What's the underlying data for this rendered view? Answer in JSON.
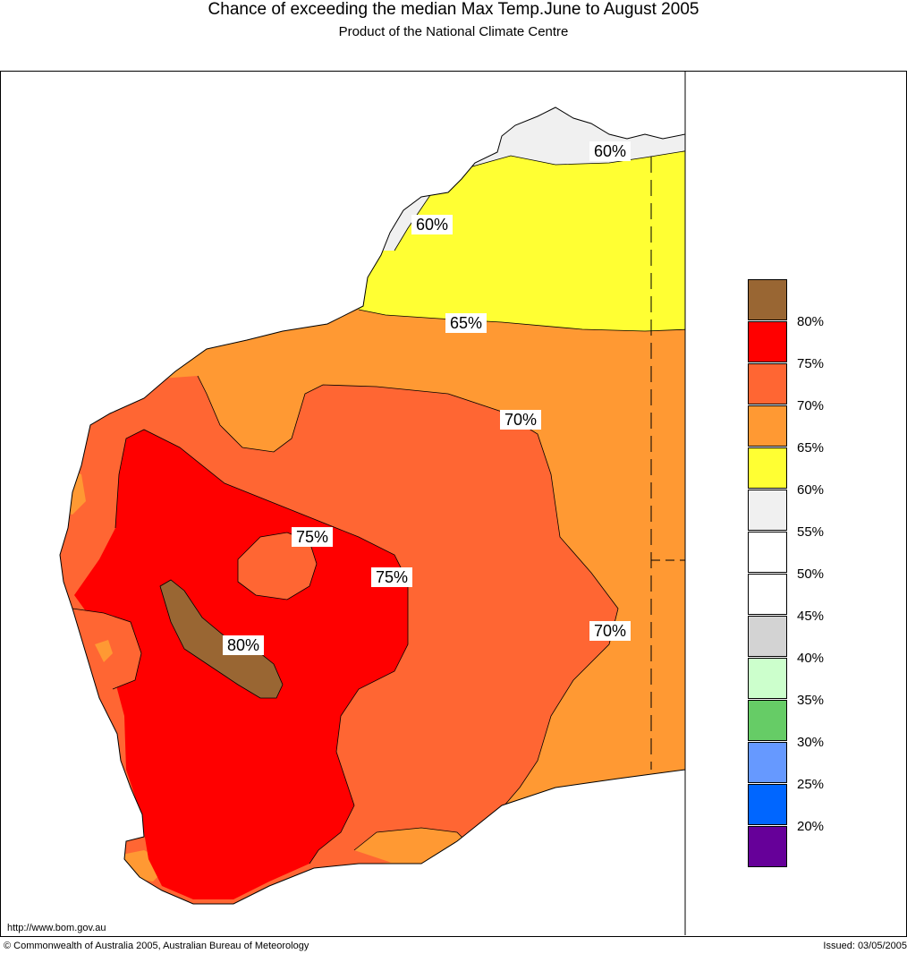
{
  "header": {
    "title": "Chance of exceeding the median Max Temp.June to August 2005",
    "subtitle": "Product of the National Climate Centre"
  },
  "map": {
    "contour_labels": [
      "60%",
      "60%",
      "65%",
      "70%",
      "70%",
      "75%",
      "75%",
      "80%"
    ],
    "colors": {
      "c55_60": "#f0f0f0",
      "c60_65": "#ffff33",
      "c65_70": "#ff9933",
      "c70_75": "#ff6633",
      "c75_80": "#ff0000",
      "c80": "#996633"
    }
  },
  "legend": {
    "labels": [
      "80%",
      "75%",
      "70%",
      "65%",
      "60%",
      "55%",
      "50%",
      "45%",
      "40%",
      "35%",
      "30%",
      "25%",
      "20%"
    ],
    "colors": [
      "#996633",
      "#ff0000",
      "#ff6633",
      "#ff9933",
      "#ffff33",
      "#f0f0f0",
      "#ffffff",
      "#ffffff",
      "#d3d3d3",
      "#ccffcc",
      "#66cc66",
      "#6699ff",
      "#0066ff",
      "#660099"
    ]
  },
  "footer": {
    "url": "http://www.bom.gov.au",
    "copyright": "© Commonwealth of Australia 2005, Australian Bureau of Meteorology",
    "issued": "Issued: 03/05/2005"
  }
}
